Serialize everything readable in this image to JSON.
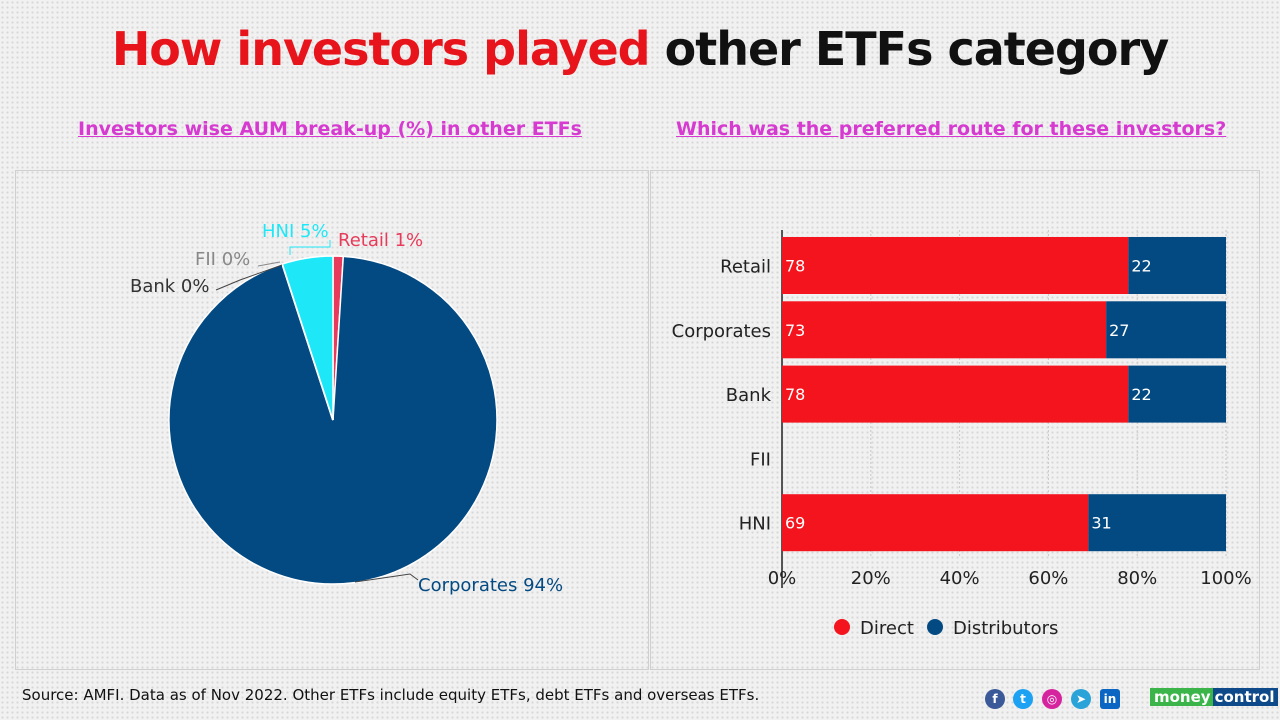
{
  "title": {
    "part1": "How investors played",
    "part2": "other ETFs category"
  },
  "footer": {
    "source": "Source: AMFI. Data as of Nov 2022. Other ETFs include equity ETFs, debt ETFs and overseas ETFs.",
    "brand1": "money",
    "brand2": "control",
    "social": [
      "facebook-icon",
      "twitter-icon",
      "instagram-icon",
      "telegram-icon",
      "linkedin-icon"
    ]
  },
  "chart_data": [
    {
      "type": "pie",
      "title": "Investors wise AUM break-up (%) in other ETFs",
      "slices": [
        {
          "label": "Retail 1%",
          "name": "Retail",
          "value": 1,
          "color": "#e83a5a"
        },
        {
          "label": "Corporates 94%",
          "name": "Corporates",
          "value": 94,
          "color": "#044a82"
        },
        {
          "label": "Bank 0%",
          "name": "Bank",
          "value": 0,
          "color": "#333333"
        },
        {
          "label": "FII 0%",
          "name": "FII",
          "value": 0,
          "color": "#888888"
        },
        {
          "label": "HNI 5%",
          "name": "HNI",
          "value": 5,
          "color": "#1ee8f8"
        }
      ]
    },
    {
      "type": "bar",
      "stacked": true,
      "orientation": "horizontal",
      "title": "Which was the preferred route for these investors?",
      "categories": [
        "Retail",
        "Corporates",
        "Bank",
        "FII",
        "HNI"
      ],
      "series": [
        {
          "name": "Direct",
          "color": "#f4141e",
          "values": [
            78,
            73,
            78,
            null,
            69
          ]
        },
        {
          "name": "Distributors",
          "color": "#044a82",
          "values": [
            22,
            27,
            22,
            null,
            31
          ]
        }
      ],
      "xticks": [
        "0%",
        "20%",
        "40%",
        "60%",
        "80%",
        "100%"
      ],
      "xlim": [
        0,
        100
      ],
      "grid": true,
      "legend": "bottom"
    }
  ]
}
